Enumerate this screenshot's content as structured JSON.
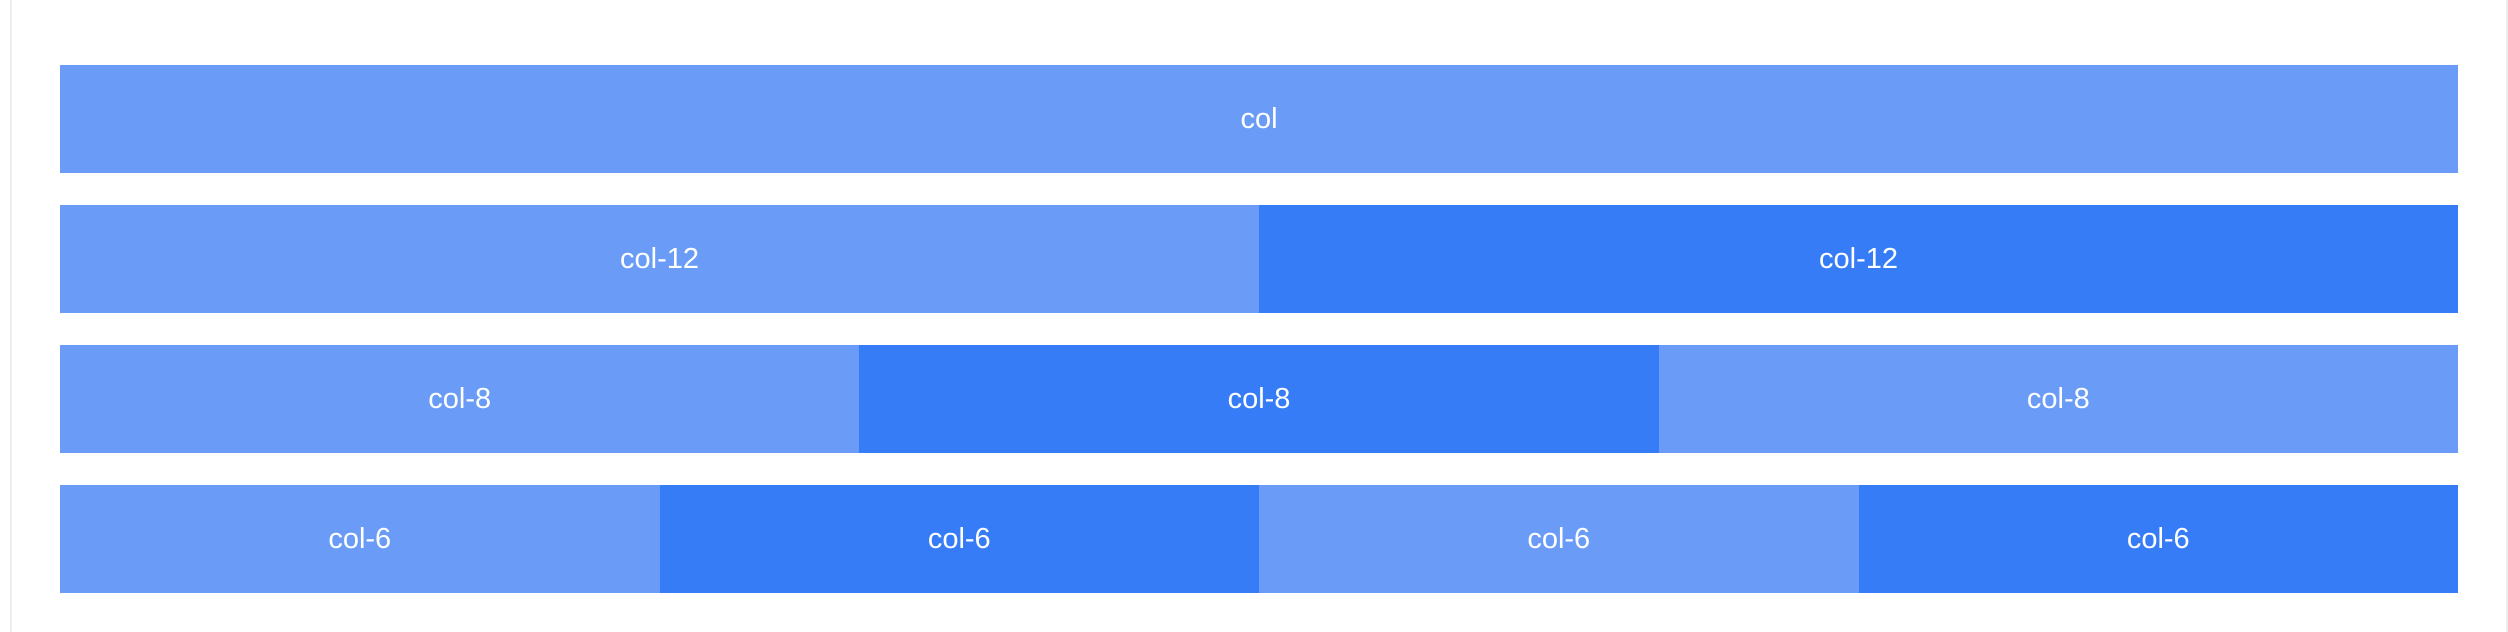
{
  "rows": [
    {
      "cols": [
        "col"
      ]
    },
    {
      "cols": [
        "col-12",
        "col-12"
      ]
    },
    {
      "cols": [
        "col-8",
        "col-8",
        "col-8"
      ]
    },
    {
      "cols": [
        "col-6",
        "col-6",
        "col-6",
        "col-6"
      ]
    }
  ],
  "colors": {
    "light_blue": "#6a9cf7",
    "dark_blue": "#357cf6",
    "text": "#ffffff"
  }
}
